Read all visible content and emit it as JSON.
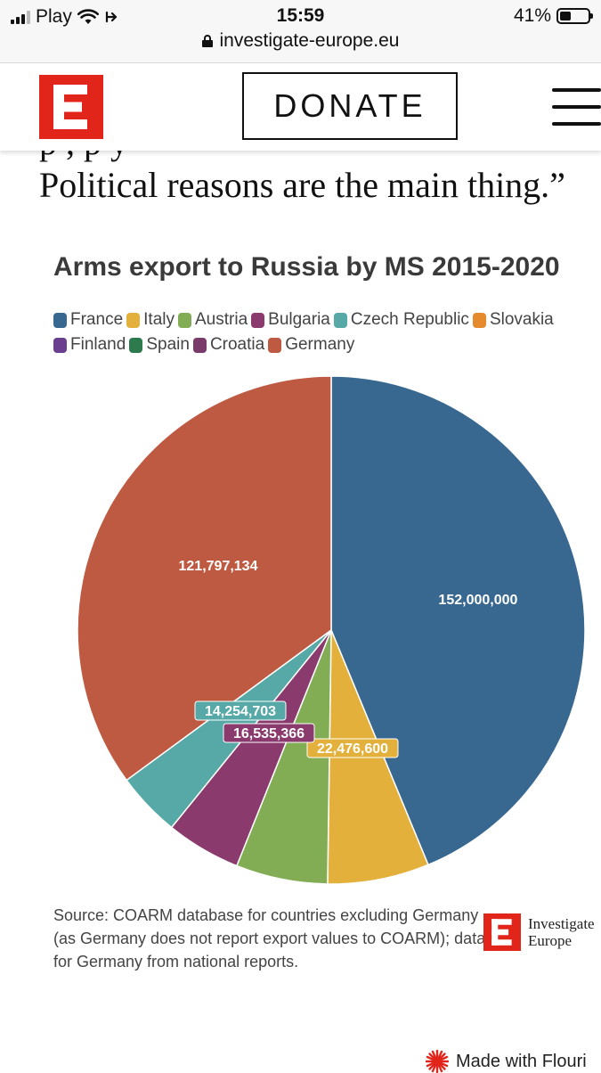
{
  "status_bar": {
    "carrier": "Play",
    "time": "15:59",
    "battery": "41%",
    "battery_level": 0.41,
    "url": "investigate-europe.eu"
  },
  "header": {
    "logo_letter": "E",
    "donate_label": "DONATE"
  },
  "article": {
    "quote_top_fragment": "p ,                       p    y",
    "quote_line": "Political reasons are the main thing.”"
  },
  "chart_data": {
    "type": "pie",
    "title": "Arms export to Russia by MS 2015-2020",
    "legend": [
      {
        "name": "France",
        "color": "#386890"
      },
      {
        "name": "Italy",
        "color": "#e3b13b"
      },
      {
        "name": "Austria",
        "color": "#82ad55"
      },
      {
        "name": "Bulgaria",
        "color": "#8b3a6e"
      },
      {
        "name": "Czech Republic",
        "color": "#56a9a6"
      },
      {
        "name": "Slovakia",
        "color": "#e68a2e"
      },
      {
        "name": "Finland",
        "color": "#6b3f8f"
      },
      {
        "name": "Spain",
        "color": "#2e7a4f"
      },
      {
        "name": "Croatia",
        "color": "#7a3a6a"
      },
      {
        "name": "Germany",
        "color": "#bf5a42"
      }
    ],
    "slices": [
      {
        "name": "France",
        "value": 152000000,
        "label": "152,000,000",
        "color": "#386890"
      },
      {
        "name": "Italy",
        "value": 22476600,
        "label": "22,476,600",
        "color": "#e3b13b"
      },
      {
        "name": "Austria",
        "value": 20300000,
        "label": "",
        "color": "#82ad55"
      },
      {
        "name": "Bulgaria",
        "value": 16535366,
        "label": "16,535,366",
        "color": "#8b3a6e"
      },
      {
        "name": "Czech Republic",
        "value": 14254703,
        "label": "14,254,703",
        "color": "#56a9a6"
      },
      {
        "name": "Germany",
        "value": 121797134,
        "label": "121,797,134",
        "color": "#bf5a42"
      }
    ],
    "legend_position": "top"
  },
  "source_note": "Source: COARM database for countries excluding Germany (as Germany does not report export values to COARM); data for Germany from national reports.",
  "brand": {
    "line1": "Investigate",
    "line2": "Europe"
  },
  "footer": {
    "made_with": "Made with Flouri"
  }
}
